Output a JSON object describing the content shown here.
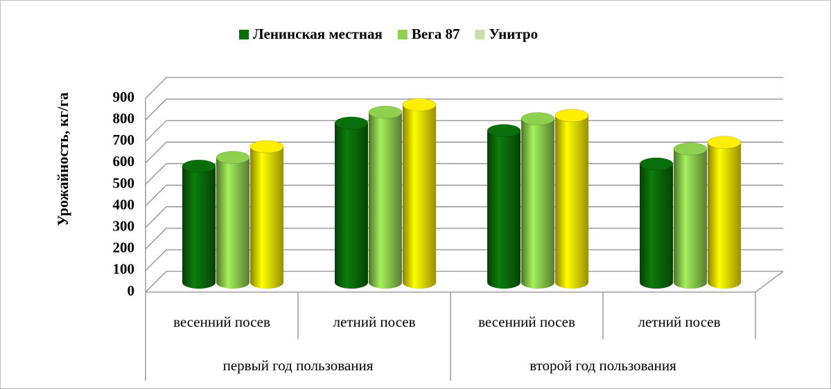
{
  "chart_data": {
    "type": "bar3d",
    "y_label": "Урожайность, кг/га",
    "categories": [
      "весенний посев",
      "летний посев",
      "весенний посев",
      "летний посев"
    ],
    "groups": [
      "первый год пользования",
      "второй год пользования"
    ],
    "series": [
      {
        "name": "Ленинская местная",
        "color": "#0a6e0a",
        "legend_color": "#0a6e0a",
        "values": [
          540,
          740,
          705,
          550
        ]
      },
      {
        "name": "Вега 87",
        "color": "#8fd14f",
        "legend_color": "#8fd14f",
        "values": [
          580,
          790,
          760,
          620
        ]
      },
      {
        "name": "Унитро",
        "color": "#ffee00",
        "legend_color": "#c8e0a8",
        "values": [
          630,
          825,
          775,
          650
        ]
      }
    ],
    "ylim": [
      0,
      900
    ],
    "yticks": [
      0,
      100,
      200,
      300,
      400,
      500,
      600,
      700,
      800,
      900
    ],
    "grid": true,
    "legend": "top"
  }
}
